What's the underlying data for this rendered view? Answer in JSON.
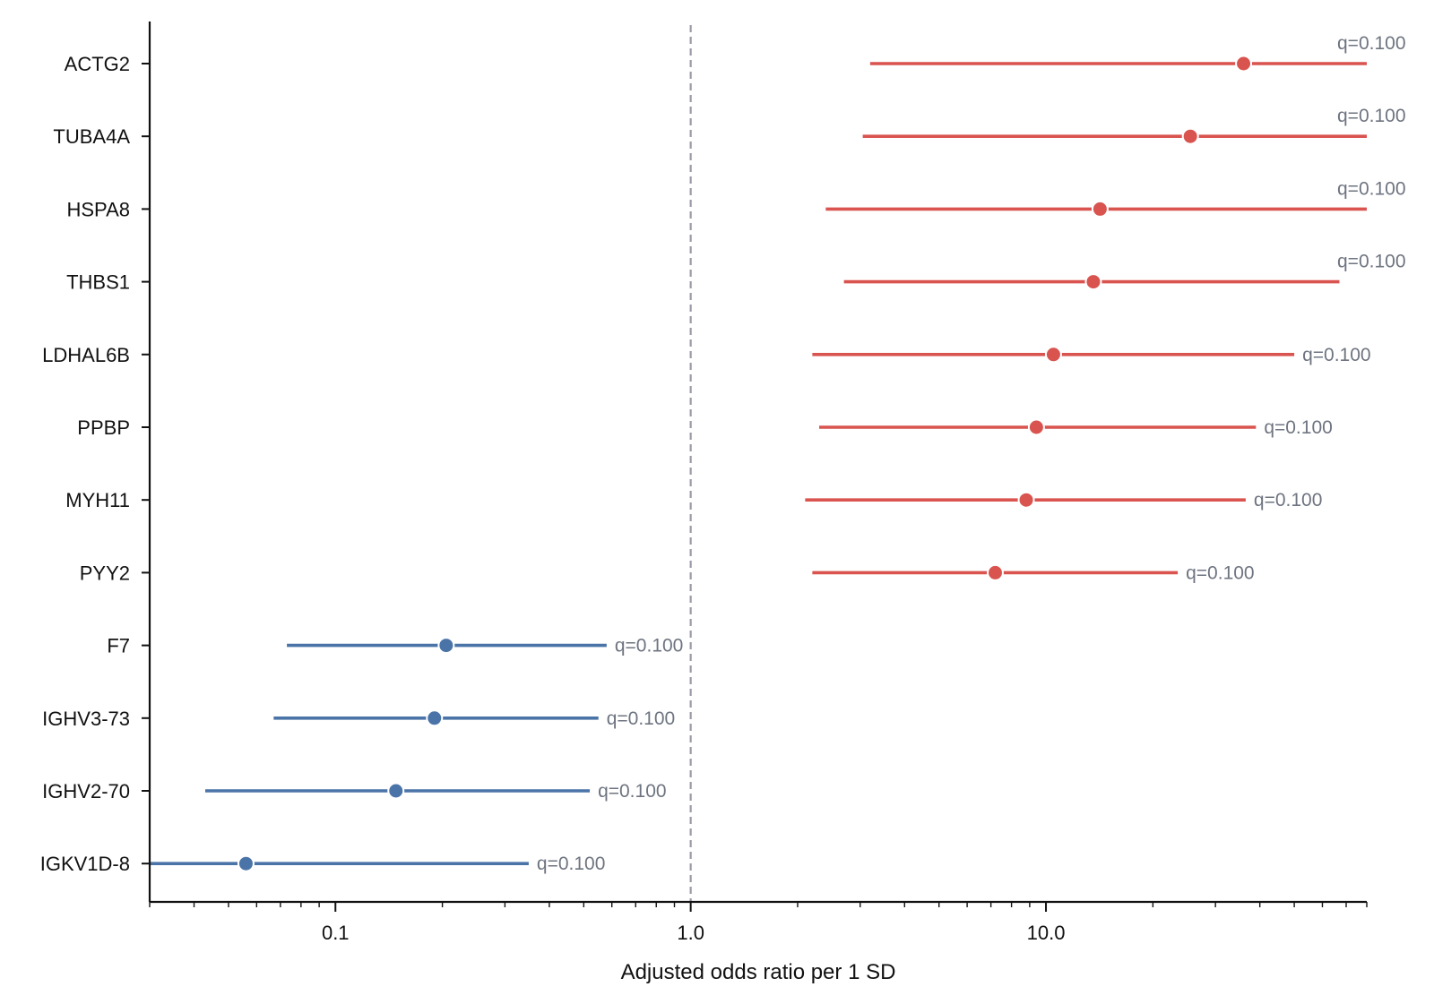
{
  "chart_data": {
    "type": "forest",
    "xlabel": "Adjusted odds ratio per 1 SD",
    "x_scale": "log",
    "xlim": [
      0.03,
      80
    ],
    "x_ticks": [
      {
        "value": 0.1,
        "label": "0.1"
      },
      {
        "value": 1,
        "label": "1.0"
      },
      {
        "value": 10,
        "label": "10.0"
      }
    ],
    "reference_line": 1.0,
    "grid": false,
    "colors": {
      "positive": "#d9534f",
      "negative": "#4a74a8",
      "reference": "#9a9aa8",
      "annotation": "#6e7480"
    },
    "rows": [
      {
        "label": "ACTG2",
        "or": 36.0,
        "ci_low": 3.2,
        "ci_high": 80,
        "q_label": "q=0.100",
        "group": "positive"
      },
      {
        "label": "TUBA4A",
        "or": 25.5,
        "ci_low": 3.05,
        "ci_high": 80,
        "q_label": "q=0.100",
        "group": "positive"
      },
      {
        "label": "HSPA8",
        "or": 14.2,
        "ci_low": 2.4,
        "ci_high": 80,
        "q_label": "q=0.100",
        "group": "positive"
      },
      {
        "label": "THBS1",
        "or": 13.6,
        "ci_low": 2.7,
        "ci_high": 67,
        "q_label": "q=0.100",
        "group": "positive"
      },
      {
        "label": "LDHAL6B",
        "or": 10.5,
        "ci_low": 2.2,
        "ci_high": 50,
        "q_label": "q=0.100",
        "group": "positive"
      },
      {
        "label": "PPBP",
        "or": 9.4,
        "ci_low": 2.3,
        "ci_high": 39,
        "q_label": "q=0.100",
        "group": "positive"
      },
      {
        "label": "MYH11",
        "or": 8.8,
        "ci_low": 2.1,
        "ci_high": 36.5,
        "q_label": "q=0.100",
        "group": "positive"
      },
      {
        "label": "PYY2",
        "or": 7.2,
        "ci_low": 2.2,
        "ci_high": 23.5,
        "q_label": "q=0.100",
        "group": "positive"
      },
      {
        "label": "F7",
        "or": 0.205,
        "ci_low": 0.073,
        "ci_high": 0.58,
        "q_label": "q=0.100",
        "group": "negative"
      },
      {
        "label": "IGHV3-73",
        "or": 0.19,
        "ci_low": 0.067,
        "ci_high": 0.55,
        "q_label": "q=0.100",
        "group": "negative"
      },
      {
        "label": "IGHV2-70",
        "or": 0.148,
        "ci_low": 0.043,
        "ci_high": 0.52,
        "q_label": "q=0.100",
        "group": "negative"
      },
      {
        "label": "IGKV1D-8",
        "or": 0.056,
        "ci_low": 0.03,
        "ci_high": 0.35,
        "q_label": "q=0.100",
        "group": "negative"
      }
    ]
  }
}
